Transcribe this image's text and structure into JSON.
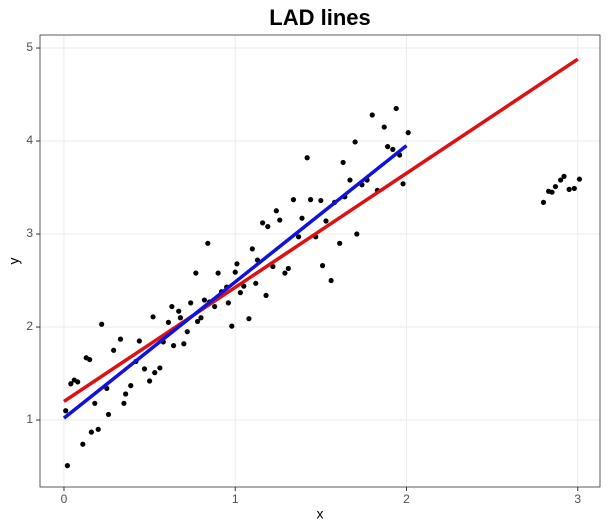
{
  "chart_data": {
    "type": "scatter",
    "title": "LAD lines",
    "x_label": "x",
    "y_label": "y",
    "xlim": [
      -0.14,
      3.13
    ],
    "ylim": [
      0.28,
      5.14
    ],
    "xticks": [
      0,
      1,
      2,
      3
    ],
    "yticks": [
      1,
      2,
      3,
      4,
      5
    ],
    "grid": true,
    "point_color": "#000000",
    "x": [
      0.02,
      0.01,
      0.04,
      0.06,
      0.08,
      0.11,
      0.13,
      0.15,
      0.16,
      0.18,
      0.2,
      0.22,
      0.25,
      0.26,
      0.29,
      0.33,
      0.35,
      0.36,
      0.39,
      0.42,
      0.44,
      0.47,
      0.5,
      0.52,
      0.53,
      0.56,
      0.58,
      0.61,
      0.63,
      0.64,
      0.67,
      0.68,
      0.7,
      0.72,
      0.74,
      0.77,
      0.78,
      0.8,
      0.82,
      0.84,
      0.85,
      0.88,
      0.9,
      0.92,
      0.95,
      0.96,
      0.98,
      1.0,
      1.01,
      1.03,
      1.05,
      1.08,
      1.1,
      1.12,
      1.13,
      1.16,
      1.18,
      1.19,
      1.22,
      1.24,
      1.26,
      1.29,
      1.31,
      1.34,
      1.37,
      1.39,
      1.42,
      1.44,
      1.47,
      1.5,
      1.51,
      1.53,
      1.56,
      1.58,
      1.61,
      1.63,
      1.64,
      1.67,
      1.7,
      1.71,
      1.74,
      1.77,
      1.8,
      1.83,
      1.87,
      1.89,
      1.92,
      1.94,
      1.96,
      1.98,
      2.01,
      2.8,
      2.83,
      2.85,
      2.87,
      2.9,
      2.92,
      2.95,
      2.98,
      3.01
    ],
    "values": [
      0.51,
      1.1,
      1.39,
      1.43,
      1.41,
      0.74,
      1.67,
      1.65,
      0.87,
      1.18,
      0.9,
      2.03,
      1.34,
      1.06,
      1.75,
      1.87,
      1.18,
      1.28,
      1.37,
      1.63,
      1.85,
      1.55,
      1.42,
      2.11,
      1.51,
      1.56,
      1.84,
      2.05,
      2.22,
      1.8,
      2.17,
      2.1,
      1.82,
      1.95,
      2.26,
      2.58,
      2.06,
      2.1,
      2.29,
      2.9,
      2.27,
      2.22,
      2.58,
      2.38,
      2.43,
      2.26,
      2.01,
      2.59,
      2.68,
      2.37,
      2.44,
      2.09,
      2.84,
      2.47,
      2.72,
      3.12,
      2.34,
      3.08,
      2.65,
      3.25,
      3.15,
      2.58,
      2.63,
      3.37,
      2.97,
      3.17,
      3.82,
      3.37,
      2.97,
      3.36,
      2.66,
      3.14,
      2.5,
      3.34,
      2.9,
      3.77,
      3.4,
      3.58,
      3.99,
      3.0,
      3.53,
      3.58,
      4.28,
      3.47,
      4.15,
      3.94,
      3.91,
      4.35,
      3.85,
      3.54,
      4.09,
      3.34,
      3.46,
      3.45,
      3.51,
      3.58,
      3.62,
      3.48,
      3.49,
      3.59
    ],
    "lines": [
      {
        "color": "#dd1111",
        "x": [
          0,
          3
        ],
        "values": [
          1.2,
          4.88
        ]
      },
      {
        "color": "#1111dd",
        "x": [
          0,
          2
        ],
        "values": [
          1.02,
          3.95
        ]
      }
    ]
  }
}
